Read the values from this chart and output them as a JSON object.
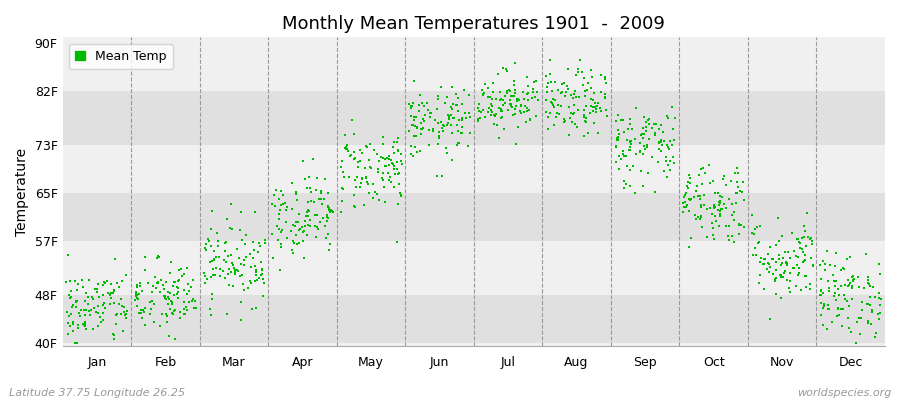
{
  "title": "Monthly Mean Temperatures 1901  -  2009",
  "ylabel": "Temperature",
  "xlabel_months": [
    "Jan",
    "Feb",
    "Mar",
    "Apr",
    "May",
    "Jun",
    "Jul",
    "Aug",
    "Sep",
    "Oct",
    "Nov",
    "Dec"
  ],
  "ytick_labels": [
    "40F",
    "48F",
    "57F",
    "65F",
    "73F",
    "82F",
    "90F"
  ],
  "ytick_values": [
    40,
    48,
    57,
    65,
    73,
    82,
    90
  ],
  "ylim": [
    39.5,
    91
  ],
  "legend_label": "Mean Temp",
  "dot_color": "#00bb00",
  "background_color": "#ffffff",
  "plot_bg_color": "#f0f0f0",
  "band_color": "#e0e0e0",
  "grid_color": "#999999",
  "footer_left": "Latitude 37.75 Longitude 26.25",
  "footer_right": "worldspecies.org",
  "monthly_mean": [
    46.0,
    47.5,
    53.5,
    61.5,
    69.0,
    76.5,
    80.5,
    80.0,
    73.0,
    63.5,
    54.0,
    48.0
  ],
  "monthly_std": [
    3.2,
    3.2,
    3.5,
    3.5,
    3.5,
    3.0,
    2.5,
    2.8,
    3.5,
    3.5,
    3.5,
    3.5
  ],
  "n_years": 109,
  "seed": 42
}
